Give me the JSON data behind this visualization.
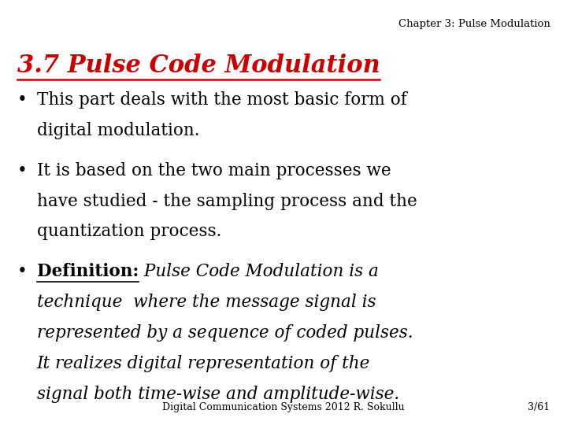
{
  "background_color": "#ffffff",
  "header_text": "Chapter 3: Pulse Modulation",
  "header_fontsize": 9.5,
  "header_color": "#000000",
  "title_text": "3.7 Pulse Code Modulation",
  "title_fontsize": 22,
  "title_color": "#cc0000",
  "footer_left": "Digital Communication Systems 2012 R. Sokullu",
  "footer_right": "3/61",
  "footer_fontsize": 9,
  "footer_color": "#000000",
  "bullet_fontsize": 15.5,
  "bullet1_line1": "This part deals with the most basic form of",
  "bullet1_line2": "digital modulation.",
  "bullet2_line1": "It is based on the two main processes we",
  "bullet2_line2": "have studied - the sampling process and the",
  "bullet2_line3": "quantization process.",
  "def_label": "Definition:",
  "def_line1": " Pulse Code Modulation is a",
  "def_line2": "technique  where the message signal is",
  "def_line3": "represented by a sequence of coded pulses.",
  "def_line4": "It realizes digital representation of the",
  "def_line5": "signal both time-wise and amplitude-wise."
}
